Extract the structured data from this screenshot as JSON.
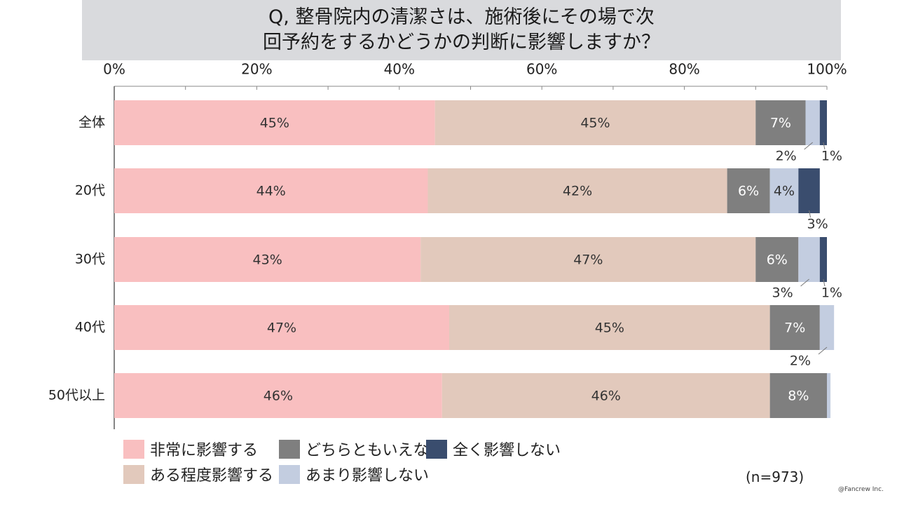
{
  "title": {
    "line1": "Q, 整骨院内の清潔さは、施術後にその場で次",
    "line2": "回予約をするかどうかの判断に影響しますか？"
  },
  "chart_data": {
    "type": "bar",
    "orientation": "horizontal",
    "stacked": true,
    "x_ticks": [
      "0%",
      "20%",
      "40%",
      "60%",
      "80%",
      "100%"
    ],
    "xlim": [
      0,
      100
    ],
    "legend_placement": "bottom",
    "categories": [
      "全体",
      "20代",
      "30代",
      "40代",
      "50代以上"
    ],
    "series": [
      {
        "name": "非常に影響する",
        "color": "#f9bfc0",
        "values": [
          45,
          44,
          43,
          47,
          46
        ],
        "labels": [
          "45%",
          "44%",
          "43%",
          "47%",
          "46%"
        ]
      },
      {
        "name": "ある程度影響する",
        "color": "#e2c9bc",
        "values": [
          45,
          42,
          47,
          45,
          46
        ],
        "labels": [
          "45%",
          "42%",
          "47%",
          "45%",
          "46%"
        ]
      },
      {
        "name": "どちらともいえない",
        "color": "#7f7f7f",
        "values": [
          7,
          6,
          6,
          7,
          8
        ],
        "labels": [
          "7%",
          "6%",
          "6%",
          "7%",
          "8%"
        ]
      },
      {
        "name": "あまり影響しない",
        "color": "#c3cde0",
        "values": [
          2,
          4,
          3,
          2,
          0.5
        ],
        "labels": [
          "2%",
          "4%",
          "3%",
          "2%",
          ""
        ]
      },
      {
        "name": "全く影響しない",
        "color": "#3a4d6e",
        "values": [
          1,
          3,
          1,
          0,
          0
        ],
        "labels": [
          "1%",
          "3%",
          "1%",
          "",
          ""
        ]
      }
    ]
  },
  "sample_size": "(n=973)",
  "copyright": "@Fancrew Inc."
}
